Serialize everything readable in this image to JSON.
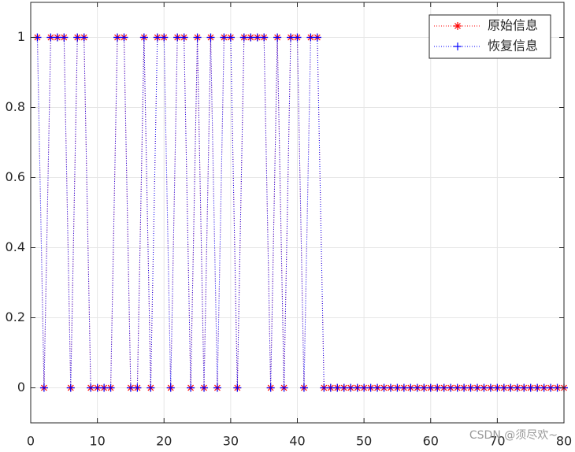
{
  "chart_data": {
    "type": "line",
    "x": [
      1,
      2,
      3,
      4,
      5,
      6,
      7,
      8,
      9,
      10,
      11,
      12,
      13,
      14,
      15,
      16,
      17,
      18,
      19,
      20,
      21,
      22,
      23,
      24,
      25,
      26,
      27,
      28,
      29,
      30,
      31,
      32,
      33,
      34,
      35,
      36,
      37,
      38,
      39,
      40,
      41,
      42,
      43,
      44,
      45,
      46,
      47,
      48,
      49,
      50,
      51,
      52,
      53,
      54,
      55,
      56,
      57,
      58,
      59,
      60,
      61,
      62,
      63,
      64,
      65,
      66,
      67,
      68,
      69,
      70,
      71,
      72,
      73,
      74,
      75,
      76,
      77,
      78,
      79,
      80
    ],
    "series": [
      {
        "name": "原始信息",
        "color": "#ff0000",
        "marker": "*",
        "values": [
          1,
          0,
          1,
          1,
          1,
          0,
          1,
          1,
          0,
          0,
          0,
          0,
          1,
          1,
          0,
          0,
          1,
          0,
          1,
          1,
          0,
          1,
          1,
          0,
          1,
          0,
          1,
          0,
          1,
          1,
          0,
          1,
          1,
          1,
          1,
          0,
          1,
          0,
          1,
          1,
          0,
          1,
          1,
          0,
          0,
          0,
          0,
          0,
          0,
          0,
          0,
          0,
          0,
          0,
          0,
          0,
          0,
          0,
          0,
          0,
          0,
          0,
          0,
          0,
          0,
          0,
          0,
          0,
          0,
          0,
          0,
          0,
          0,
          0,
          0,
          0,
          0,
          0,
          0,
          0
        ]
      },
      {
        "name": "恢复信息",
        "color": "#0000ff",
        "marker": "+",
        "values": [
          1,
          0,
          1,
          1,
          1,
          0,
          1,
          1,
          0,
          0,
          0,
          0,
          1,
          1,
          0,
          0,
          1,
          0,
          1,
          1,
          0,
          1,
          1,
          0,
          1,
          0,
          1,
          0,
          1,
          1,
          0,
          1,
          1,
          1,
          1,
          0,
          1,
          0,
          1,
          1,
          0,
          1,
          1,
          0,
          0,
          0,
          0,
          0,
          0,
          0,
          0,
          0,
          0,
          0,
          0,
          0,
          0,
          0,
          0,
          0,
          0,
          0,
          0,
          0,
          0,
          0,
          0,
          0,
          0,
          0,
          0,
          0,
          0,
          0,
          0,
          0,
          0,
          0,
          0,
          0
        ]
      }
    ],
    "xlim": [
      0,
      80
    ],
    "xticks": [
      0,
      10,
      20,
      30,
      40,
      50,
      60,
      70,
      80
    ],
    "ylim": [
      -0.1,
      1.1
    ],
    "yticks": [
      0,
      0.2,
      0.4,
      0.6,
      0.8,
      1
    ],
    "grid": true,
    "legend": "northeast",
    "watermark": "CSDN @须尽欢~"
  }
}
